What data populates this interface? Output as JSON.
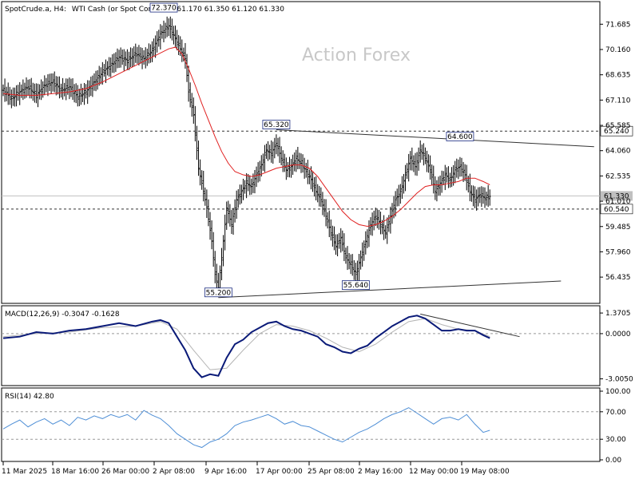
{
  "header": {
    "symbol": "SpotCrude.a, H4:",
    "description": "WTI Cash (or Spot Contract",
    "ohlc": "61.170 61.350 61.120 61.330"
  },
  "watermark": "Action Forex",
  "colors": {
    "price": "#000000",
    "ma": "#e02020",
    "macd": "#0a1a78",
    "signal": "#b4b4b4",
    "rsi": "#4f8fd6",
    "trendline": "#333333",
    "price_box_bg": "#c0c0c0",
    "level_box_bg": "#ffffff"
  },
  "chart_data": [
    {
      "type": "line",
      "panel": "price",
      "title": "",
      "y_axis_side": "right",
      "ylim": [
        54.9,
        73.0
      ],
      "y_ticks": [
        "71.685",
        "70.160",
        "68.635",
        "67.110",
        "65.585",
        "64.060",
        "62.535",
        "61.010",
        "59.485",
        "57.960",
        "56.435"
      ],
      "x_tick_labels": [
        "11 Mar 2025",
        "18 Mar 16:00",
        "26 Mar 00:00",
        "2 Apr 08:00",
        "9 Apr 16:00",
        "17 Apr 00:00",
        "25 Apr 08:00",
        "2 May 16:00",
        "12 May 00:00",
        "19 May 08:00"
      ],
      "close_path": [
        [
          0,
          67.7
        ],
        [
          5,
          67.2
        ],
        [
          10,
          67.6
        ],
        [
          15,
          67.9
        ],
        [
          20,
          67.4
        ],
        [
          25,
          68.0
        ],
        [
          30,
          68.2
        ],
        [
          35,
          67.7
        ],
        [
          40,
          67.9
        ],
        [
          45,
          67.3
        ],
        [
          50,
          67.6
        ],
        [
          55,
          68.2
        ],
        [
          60,
          68.8
        ],
        [
          65,
          69.2
        ],
        [
          70,
          69.7
        ],
        [
          75,
          69.5
        ],
        [
          80,
          69.9
        ],
        [
          85,
          69.6
        ],
        [
          90,
          70.1
        ],
        [
          95,
          71.1
        ],
        [
          100,
          71.6
        ],
        [
          105,
          70.6
        ],
        [
          110,
          69.6
        ],
        [
          112,
          67.6
        ],
        [
          115,
          66.2
        ],
        [
          118,
          63.0
        ],
        [
          120,
          62.1
        ],
        [
          123,
          60.6
        ],
        [
          126,
          58.6
        ],
        [
          128,
          56.6
        ],
        [
          130,
          55.8
        ],
        [
          132,
          57.6
        ],
        [
          135,
          60.6
        ],
        [
          138,
          59.6
        ],
        [
          141,
          61.1
        ],
        [
          144,
          61.6
        ],
        [
          147,
          62.1
        ],
        [
          150,
          61.9
        ],
        [
          153,
          62.6
        ],
        [
          156,
          63.2
        ],
        [
          159,
          64.1
        ],
        [
          162,
          63.9
        ],
        [
          165,
          64.5
        ],
        [
          168,
          63.6
        ],
        [
          171,
          62.9
        ],
        [
          174,
          63.1
        ],
        [
          177,
          63.6
        ],
        [
          180,
          63.3
        ],
        [
          183,
          62.8
        ],
        [
          186,
          62.3
        ],
        [
          189,
          61.6
        ],
        [
          192,
          61.1
        ],
        [
          195,
          60.1
        ],
        [
          198,
          59.1
        ],
        [
          201,
          58.3
        ],
        [
          204,
          58.8
        ],
        [
          207,
          57.6
        ],
        [
          210,
          57.2
        ],
        [
          213,
          56.6
        ],
        [
          216,
          57.6
        ],
        [
          219,
          58.6
        ],
        [
          222,
          59.6
        ],
        [
          225,
          60.1
        ],
        [
          228,
          59.6
        ],
        [
          231,
          59.1
        ],
        [
          234,
          60.1
        ],
        [
          237,
          61.1
        ],
        [
          240,
          61.6
        ],
        [
          243,
          62.6
        ],
        [
          246,
          63.6
        ],
        [
          249,
          63.1
        ],
        [
          252,
          64.1
        ],
        [
          255,
          63.6
        ],
        [
          258,
          62.9
        ],
        [
          261,
          61.6
        ],
        [
          264,
          62.1
        ],
        [
          267,
          62.6
        ],
        [
          270,
          62.3
        ],
        [
          273,
          62.9
        ],
        [
          276,
          63.1
        ],
        [
          279,
          62.6
        ],
        [
          282,
          61.6
        ],
        [
          285,
          61.1
        ],
        [
          288,
          61.4
        ],
        [
          291,
          61.2
        ],
        [
          294,
          61.3
        ]
      ],
      "ma_path": [
        [
          0,
          67.5
        ],
        [
          10,
          67.4
        ],
        [
          20,
          67.4
        ],
        [
          30,
          67.5
        ],
        [
          40,
          67.6
        ],
        [
          50,
          67.8
        ],
        [
          60,
          68.2
        ],
        [
          70,
          68.7
        ],
        [
          80,
          69.2
        ],
        [
          90,
          69.7
        ],
        [
          100,
          70.2
        ],
        [
          104,
          70.3
        ],
        [
          108,
          69.9
        ],
        [
          112,
          69.0
        ],
        [
          116,
          68.0
        ],
        [
          120,
          66.9
        ],
        [
          124,
          65.9
        ],
        [
          128,
          64.9
        ],
        [
          132,
          64.0
        ],
        [
          136,
          63.3
        ],
        [
          140,
          62.8
        ],
        [
          145,
          62.6
        ],
        [
          150,
          62.5
        ],
        [
          155,
          62.6
        ],
        [
          160,
          62.8
        ],
        [
          165,
          63.0
        ],
        [
          170,
          63.1
        ],
        [
          175,
          63.2
        ],
        [
          180,
          63.2
        ],
        [
          185,
          63.0
        ],
        [
          190,
          62.5
        ],
        [
          195,
          61.8
        ],
        [
          200,
          61.1
        ],
        [
          205,
          60.4
        ],
        [
          210,
          59.9
        ],
        [
          215,
          59.6
        ],
        [
          220,
          59.5
        ],
        [
          225,
          59.6
        ],
        [
          230,
          59.8
        ],
        [
          235,
          60.1
        ],
        [
          240,
          60.5
        ],
        [
          245,
          61.0
        ],
        [
          250,
          61.5
        ],
        [
          255,
          61.9
        ],
        [
          260,
          62.0
        ],
        [
          265,
          62.0
        ],
        [
          270,
          62.1
        ],
        [
          275,
          62.2
        ],
        [
          280,
          62.4
        ],
        [
          285,
          62.4
        ],
        [
          290,
          62.2
        ],
        [
          294,
          62.0
        ]
      ],
      "horizontal_levels": [
        {
          "value": 65.24,
          "label": "65.240",
          "style": "dashed"
        },
        {
          "value": 60.54,
          "label": "60.540",
          "style": "dashed"
        }
      ],
      "current_price": {
        "value": 61.33,
        "label": "61.330"
      },
      "annotations": [
        {
          "x": 97,
          "y": 72.37,
          "label": "72.370"
        },
        {
          "x": 130,
          "y": 55.2,
          "label": "55.200"
        },
        {
          "x": 165,
          "y": 65.32,
          "label": "65.320"
        },
        {
          "x": 213,
          "y": 55.64,
          "label": "55.640"
        },
        {
          "x": 276,
          "y": 64.6,
          "label": "64.600"
        }
      ],
      "trendlines": [
        {
          "x1": 165,
          "y1": 65.32,
          "x2": 357,
          "y2": 64.3
        },
        {
          "x1": 130,
          "y1": 55.2,
          "x2": 337,
          "y2": 56.2
        }
      ]
    },
    {
      "type": "line",
      "panel": "macd",
      "indicator_label": "MACD(12,26,9) -0.3047 -0.1628",
      "y_ticks": [
        "1.3705",
        "0.0000",
        "-3.0050"
      ],
      "ylim": [
        -3.4,
        1.8
      ],
      "macd_path": [
        [
          0,
          -0.3
        ],
        [
          10,
          -0.2
        ],
        [
          20,
          0.1
        ],
        [
          30,
          0.0
        ],
        [
          40,
          0.2
        ],
        [
          50,
          0.3
        ],
        [
          60,
          0.5
        ],
        [
          70,
          0.7
        ],
        [
          80,
          0.5
        ],
        [
          90,
          0.8
        ],
        [
          95,
          0.9
        ],
        [
          100,
          0.7
        ],
        [
          105,
          -0.2
        ],
        [
          110,
          -1.1
        ],
        [
          115,
          -2.3
        ],
        [
          120,
          -2.9
        ],
        [
          125,
          -2.7
        ],
        [
          130,
          -2.8
        ],
        [
          135,
          -1.6
        ],
        [
          140,
          -0.7
        ],
        [
          145,
          -0.4
        ],
        [
          150,
          0.1
        ],
        [
          155,
          0.4
        ],
        [
          160,
          0.7
        ],
        [
          165,
          0.8
        ],
        [
          170,
          0.5
        ],
        [
          175,
          0.3
        ],
        [
          180,
          0.2
        ],
        [
          185,
          0.0
        ],
        [
          190,
          -0.2
        ],
        [
          195,
          -0.7
        ],
        [
          200,
          -0.9
        ],
        [
          205,
          -1.2
        ],
        [
          210,
          -1.3
        ],
        [
          215,
          -1.0
        ],
        [
          220,
          -0.8
        ],
        [
          225,
          -0.3
        ],
        [
          230,
          0.1
        ],
        [
          235,
          0.5
        ],
        [
          240,
          0.8
        ],
        [
          245,
          1.1
        ],
        [
          250,
          1.2
        ],
        [
          255,
          1.0
        ],
        [
          260,
          0.6
        ],
        [
          265,
          0.2
        ],
        [
          270,
          0.2
        ],
        [
          275,
          0.3
        ],
        [
          280,
          0.2
        ],
        [
          285,
          0.2
        ],
        [
          290,
          -0.1
        ],
        [
          294,
          -0.3
        ]
      ],
      "signal_path": [
        [
          0,
          -0.2
        ],
        [
          20,
          0.0
        ],
        [
          40,
          0.1
        ],
        [
          60,
          0.4
        ],
        [
          80,
          0.5
        ],
        [
          95,
          0.8
        ],
        [
          105,
          0.3
        ],
        [
          115,
          -1.1
        ],
        [
          125,
          -2.4
        ],
        [
          135,
          -2.3
        ],
        [
          145,
          -1.1
        ],
        [
          155,
          0.0
        ],
        [
          165,
          0.6
        ],
        [
          175,
          0.5
        ],
        [
          185,
          0.2
        ],
        [
          195,
          -0.3
        ],
        [
          205,
          -0.9
        ],
        [
          215,
          -1.2
        ],
        [
          225,
          -0.7
        ],
        [
          235,
          0.1
        ],
        [
          245,
          0.8
        ],
        [
          255,
          1.0
        ],
        [
          265,
          0.6
        ],
        [
          275,
          0.3
        ],
        [
          285,
          0.2
        ],
        [
          294,
          -0.2
        ]
      ],
      "trendline": {
        "x1": 252,
        "y1": 1.3,
        "x2": 312,
        "y2": -0.2
      }
    },
    {
      "type": "line",
      "panel": "rsi",
      "indicator_label": "RSI(14) 42.80",
      "y_ticks": [
        "100.00",
        "70.00",
        "30.00",
        "0.00"
      ],
      "ylim": [
        0,
        100
      ],
      "levels": [
        70,
        30
      ],
      "rsi_path": [
        [
          0,
          45
        ],
        [
          5,
          52
        ],
        [
          10,
          58
        ],
        [
          15,
          48
        ],
        [
          20,
          55
        ],
        [
          25,
          60
        ],
        [
          30,
          52
        ],
        [
          35,
          58
        ],
        [
          40,
          50
        ],
        [
          45,
          62
        ],
        [
          50,
          58
        ],
        [
          55,
          64
        ],
        [
          60,
          60
        ],
        [
          65,
          66
        ],
        [
          70,
          62
        ],
        [
          75,
          66
        ],
        [
          80,
          58
        ],
        [
          85,
          72
        ],
        [
          90,
          65
        ],
        [
          95,
          60
        ],
        [
          100,
          50
        ],
        [
          105,
          38
        ],
        [
          110,
          30
        ],
        [
          115,
          22
        ],
        [
          120,
          18
        ],
        [
          125,
          26
        ],
        [
          130,
          30
        ],
        [
          135,
          38
        ],
        [
          140,
          50
        ],
        [
          145,
          55
        ],
        [
          150,
          58
        ],
        [
          155,
          62
        ],
        [
          160,
          66
        ],
        [
          165,
          60
        ],
        [
          170,
          52
        ],
        [
          175,
          56
        ],
        [
          180,
          50
        ],
        [
          185,
          48
        ],
        [
          190,
          42
        ],
        [
          195,
          36
        ],
        [
          200,
          30
        ],
        [
          205,
          26
        ],
        [
          210,
          33
        ],
        [
          215,
          40
        ],
        [
          220,
          45
        ],
        [
          225,
          52
        ],
        [
          230,
          60
        ],
        [
          235,
          66
        ],
        [
          240,
          70
        ],
        [
          245,
          76
        ],
        [
          250,
          68
        ],
        [
          255,
          60
        ],
        [
          260,
          52
        ],
        [
          265,
          60
        ],
        [
          270,
          62
        ],
        [
          275,
          58
        ],
        [
          280,
          66
        ],
        [
          285,
          52
        ],
        [
          290,
          40
        ],
        [
          294,
          43
        ]
      ]
    }
  ]
}
